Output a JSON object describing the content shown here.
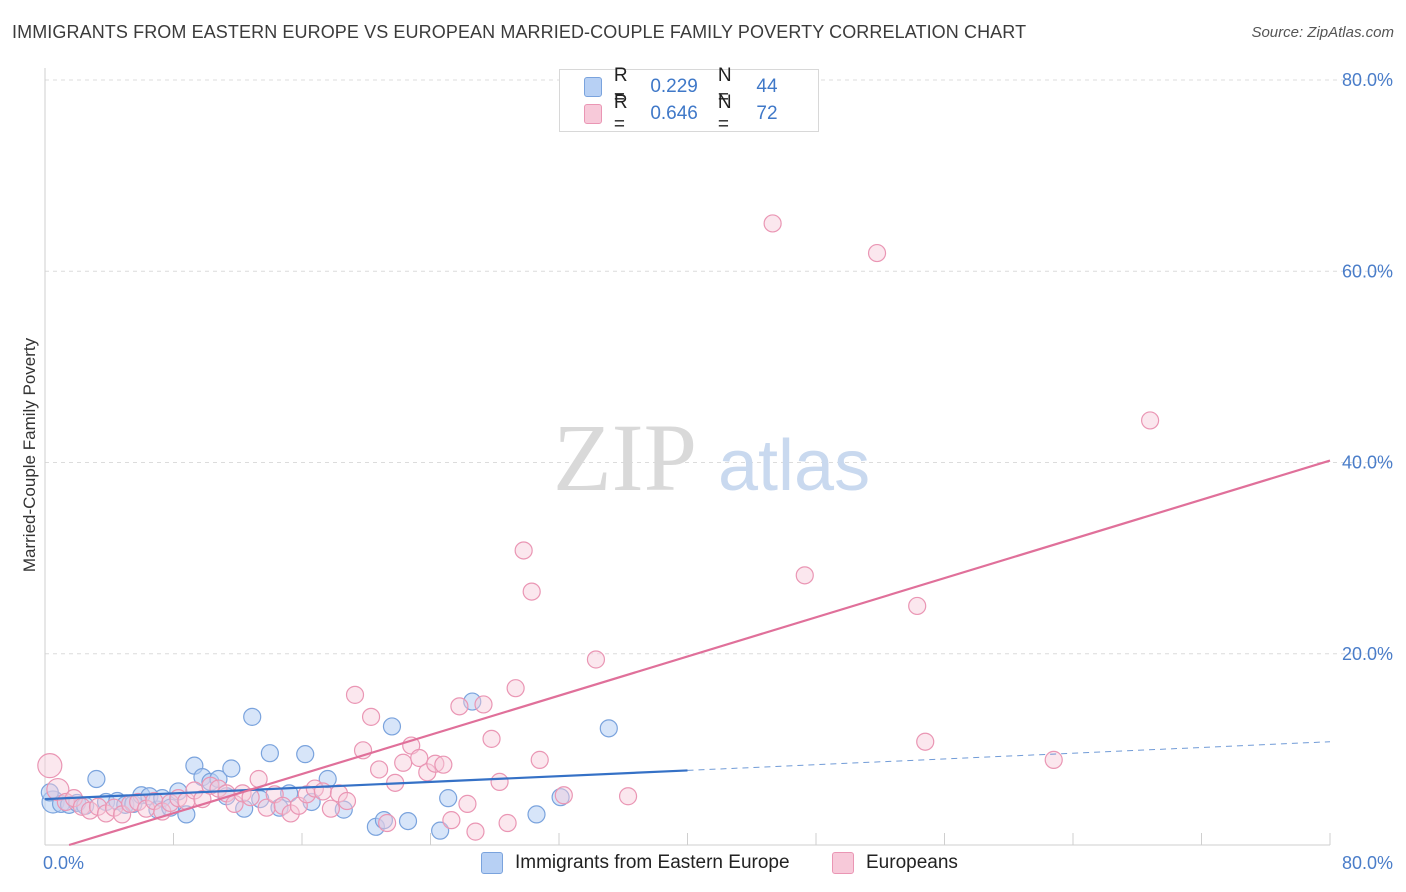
{
  "title": "IMMIGRANTS FROM EASTERN EUROPE VS EUROPEAN MARRIED-COUPLE FAMILY POVERTY CORRELATION CHART",
  "source": "Source: ZipAtlas.com",
  "colors": {
    "blue_fill": "#b7d0f4",
    "blue_stroke": "#7aa3dd",
    "blue_line": "#3571c6",
    "pink_fill": "#f7c9d9",
    "pink_stroke": "#ea96b4",
    "pink_line": "#e0709a",
    "tick_text": "#4a7dc9"
  },
  "legend": {
    "rows": [
      {
        "r_label": "R =",
        "r_value": "0.229",
        "n_label": "N =",
        "n_value": "44",
        "color": "#b7d0f4"
      },
      {
        "r_label": "R =",
        "r_value": "0.646",
        "n_label": "N =",
        "n_value": "72",
        "color": "#f7c9d9"
      }
    ]
  },
  "bottom_legend": {
    "series_1": "Immigrants from Eastern Europe",
    "series_2": "Europeans"
  },
  "watermark": {
    "zip": "ZIP",
    "atlas": "atlas"
  },
  "chart_data": {
    "type": "scatter",
    "title": "IMMIGRANTS FROM EASTERN EUROPE VS EUROPEAN MARRIED-COUPLE FAMILY POVERTY CORRELATION CHART",
    "xlabel": "",
    "ylabel": "Married-Couple Family Poverty",
    "xlim": [
      0,
      80
    ],
    "ylim": [
      0,
      80
    ],
    "x_tick_labels": [
      "0.0%",
      "80.0%"
    ],
    "y_tick_labels": [
      "20.0%",
      "40.0%",
      "60.0%",
      "80.0%"
    ],
    "y_ticks": [
      20,
      40,
      60,
      80
    ],
    "x_minor_ticks": [
      8,
      16,
      24,
      32,
      40,
      48,
      56,
      64,
      72,
      80
    ],
    "grid": true,
    "series": [
      {
        "name": "Immigrants from Eastern Europe",
        "R": 0.229,
        "N": 44,
        "trend": {
          "x0": 0,
          "y0": 4.8,
          "x1": 40,
          "y1": 7.8,
          "dash_to": 80,
          "dash_y": 10.8
        },
        "points": [
          [
            0.5,
            4.5
          ],
          [
            1.0,
            4.3
          ],
          [
            1.5,
            4.2
          ],
          [
            2.0,
            4.4
          ],
          [
            2.5,
            4.1
          ],
          [
            3.2,
            6.9
          ],
          [
            3.8,
            4.5
          ],
          [
            4.5,
            4.6
          ],
          [
            5.0,
            4.2
          ],
          [
            5.5,
            4.3
          ],
          [
            6.0,
            5.2
          ],
          [
            6.5,
            5.1
          ],
          [
            7.0,
            3.7
          ],
          [
            7.3,
            4.9
          ],
          [
            7.8,
            3.9
          ],
          [
            8.3,
            5.6
          ],
          [
            8.8,
            3.2
          ],
          [
            9.3,
            8.3
          ],
          [
            9.8,
            7.1
          ],
          [
            10.3,
            6.6
          ],
          [
            10.8,
            6.9
          ],
          [
            11.3,
            5.1
          ],
          [
            11.6,
            8.0
          ],
          [
            12.4,
            3.8
          ],
          [
            12.9,
            13.4
          ],
          [
            13.4,
            4.8
          ],
          [
            14.0,
            9.6
          ],
          [
            14.6,
            3.9
          ],
          [
            15.2,
            5.4
          ],
          [
            16.2,
            9.5
          ],
          [
            16.6,
            4.5
          ],
          [
            17.6,
            6.9
          ],
          [
            18.6,
            3.7
          ],
          [
            20.6,
            1.9
          ],
          [
            21.1,
            2.6
          ],
          [
            21.6,
            12.4
          ],
          [
            22.6,
            2.5
          ],
          [
            24.6,
            1.5
          ],
          [
            25.1,
            4.9
          ],
          [
            26.6,
            15.0
          ],
          [
            30.6,
            3.2
          ],
          [
            32.1,
            5.0
          ],
          [
            35.1,
            12.2
          ],
          [
            0.3,
            5.5
          ]
        ]
      },
      {
        "name": "Europeans",
        "R": 0.646,
        "N": 72,
        "trend": {
          "x0": 1.5,
          "y0": 0.0,
          "x1": 80,
          "y1": 40.2
        },
        "points": [
          [
            0.3,
            8.3
          ],
          [
            0.8,
            5.8
          ],
          [
            1.3,
            4.5
          ],
          [
            1.8,
            4.9
          ],
          [
            2.3,
            4.0
          ],
          [
            2.8,
            3.6
          ],
          [
            3.3,
            4.0
          ],
          [
            3.8,
            3.3
          ],
          [
            4.3,
            3.9
          ],
          [
            4.8,
            3.2
          ],
          [
            5.3,
            4.3
          ],
          [
            5.8,
            4.5
          ],
          [
            6.3,
            3.8
          ],
          [
            6.8,
            4.6
          ],
          [
            7.3,
            3.5
          ],
          [
            7.8,
            4.4
          ],
          [
            8.3,
            4.9
          ],
          [
            8.8,
            4.6
          ],
          [
            9.3,
            5.7
          ],
          [
            9.8,
            4.8
          ],
          [
            10.3,
            6.2
          ],
          [
            10.8,
            5.9
          ],
          [
            11.3,
            5.4
          ],
          [
            11.8,
            4.3
          ],
          [
            12.3,
            5.4
          ],
          [
            12.8,
            5.0
          ],
          [
            13.3,
            6.9
          ],
          [
            13.8,
            3.9
          ],
          [
            14.3,
            5.3
          ],
          [
            14.8,
            4.1
          ],
          [
            15.3,
            3.3
          ],
          [
            15.8,
            4.1
          ],
          [
            16.3,
            5.3
          ],
          [
            16.8,
            5.9
          ],
          [
            17.3,
            5.6
          ],
          [
            17.8,
            3.8
          ],
          [
            18.3,
            5.4
          ],
          [
            18.8,
            4.6
          ],
          [
            19.3,
            15.7
          ],
          [
            19.8,
            9.9
          ],
          [
            20.3,
            13.4
          ],
          [
            20.8,
            7.9
          ],
          [
            21.3,
            2.3
          ],
          [
            21.8,
            6.5
          ],
          [
            22.3,
            8.6
          ],
          [
            22.8,
            10.4
          ],
          [
            23.3,
            9.1
          ],
          [
            23.8,
            7.6
          ],
          [
            24.3,
            8.5
          ],
          [
            24.8,
            8.4
          ],
          [
            25.3,
            2.6
          ],
          [
            25.8,
            14.5
          ],
          [
            26.3,
            4.3
          ],
          [
            26.8,
            1.4
          ],
          [
            27.3,
            14.7
          ],
          [
            27.8,
            11.1
          ],
          [
            28.3,
            6.6
          ],
          [
            28.8,
            2.3
          ],
          [
            29.3,
            16.4
          ],
          [
            29.8,
            30.8
          ],
          [
            30.3,
            26.5
          ],
          [
            30.8,
            8.9
          ],
          [
            32.3,
            5.2
          ],
          [
            34.3,
            19.4
          ],
          [
            36.3,
            5.1
          ],
          [
            45.3,
            65.0
          ],
          [
            47.3,
            28.2
          ],
          [
            51.8,
            61.9
          ],
          [
            54.3,
            25.0
          ],
          [
            54.8,
            10.8
          ],
          [
            62.8,
            8.9
          ],
          [
            68.8,
            44.4
          ]
        ]
      }
    ]
  }
}
